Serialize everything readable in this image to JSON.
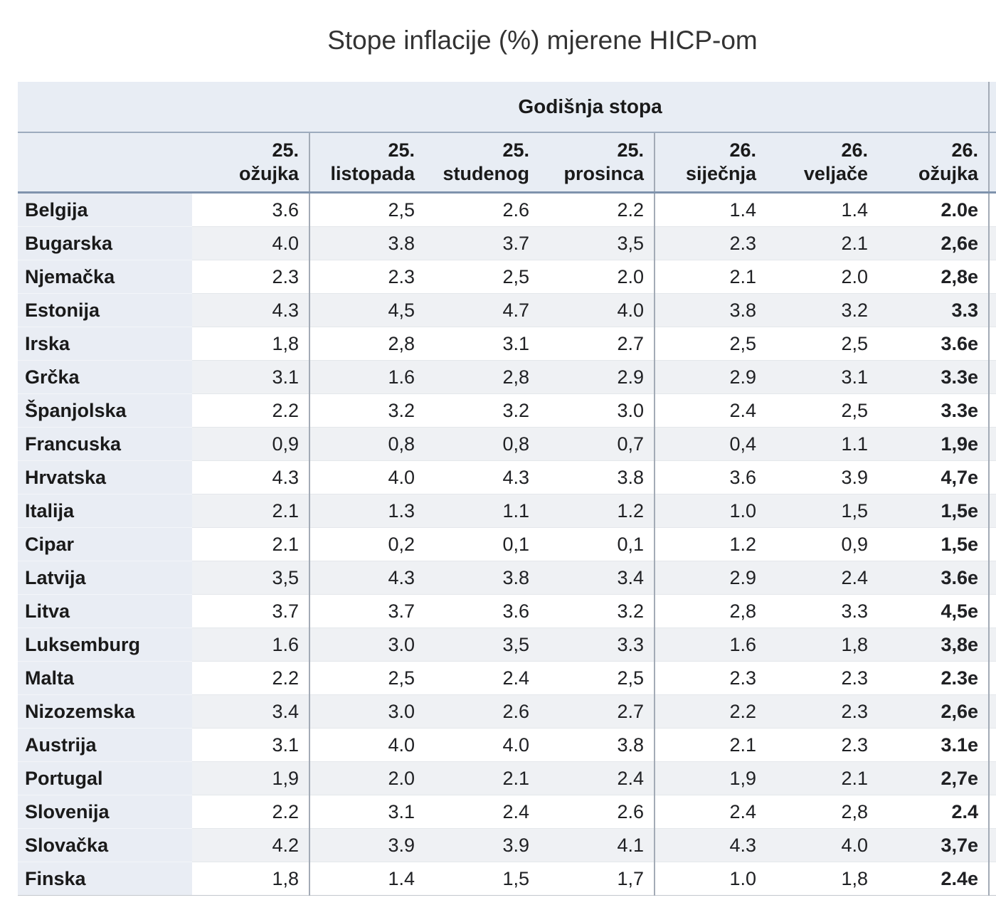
{
  "title": "Stope inflacije (%) mjerene HICP-om",
  "table": {
    "group_header": "Godišnja stopa",
    "columns": [
      {
        "line1": "25.",
        "line2": "ožujka"
      },
      {
        "line1": "25.",
        "line2": "listopada"
      },
      {
        "line1": "25.",
        "line2": "studenog"
      },
      {
        "line1": "25.",
        "line2": "prosinca"
      },
      {
        "line1": "26.",
        "line2": "siječnja"
      },
      {
        "line1": "26.",
        "line2": "veljače"
      },
      {
        "line1": "26.",
        "line2": "ožujka"
      }
    ],
    "rows": [
      {
        "country": "Belgija",
        "values": [
          "3.6",
          "2,5",
          "2.6",
          "2.2",
          "1.4",
          "1.4",
          "2.0e"
        ]
      },
      {
        "country": "Bugarska",
        "values": [
          "4.0",
          "3.8",
          "3.7",
          "3,5",
          "2.3",
          "2.1",
          "2,6e"
        ]
      },
      {
        "country": "Njemačka",
        "values": [
          "2.3",
          "2.3",
          "2,5",
          "2.0",
          "2.1",
          "2.0",
          "2,8e"
        ]
      },
      {
        "country": "Estonija",
        "values": [
          "4.3",
          "4,5",
          "4.7",
          "4.0",
          "3.8",
          "3.2",
          "3.3"
        ]
      },
      {
        "country": "Irska",
        "values": [
          "1,8",
          "2,8",
          "3.1",
          "2.7",
          "2,5",
          "2,5",
          "3.6e"
        ]
      },
      {
        "country": "Grčka",
        "values": [
          "3.1",
          "1.6",
          "2,8",
          "2.9",
          "2.9",
          "3.1",
          "3.3e"
        ]
      },
      {
        "country": "Španjolska",
        "values": [
          "2.2",
          "3.2",
          "3.2",
          "3.0",
          "2.4",
          "2,5",
          "3.3e"
        ]
      },
      {
        "country": "Francuska",
        "values": [
          "0,9",
          "0,8",
          "0,8",
          "0,7",
          "0,4",
          "1.1",
          "1,9e"
        ]
      },
      {
        "country": "Hrvatska",
        "values": [
          "4.3",
          "4.0",
          "4.3",
          "3.8",
          "3.6",
          "3.9",
          "4,7e"
        ]
      },
      {
        "country": "Italija",
        "values": [
          "2.1",
          "1.3",
          "1.1",
          "1.2",
          "1.0",
          "1,5",
          "1,5e"
        ]
      },
      {
        "country": "Cipar",
        "values": [
          "2.1",
          "0,2",
          "0,1",
          "0,1",
          "1.2",
          "0,9",
          "1,5e"
        ]
      },
      {
        "country": "Latvija",
        "values": [
          "3,5",
          "4.3",
          "3.8",
          "3.4",
          "2.9",
          "2.4",
          "3.6e"
        ]
      },
      {
        "country": "Litva",
        "values": [
          "3.7",
          "3.7",
          "3.6",
          "3.2",
          "2,8",
          "3.3",
          "4,5e"
        ]
      },
      {
        "country": "Luksemburg",
        "values": [
          "1.6",
          "3.0",
          "3,5",
          "3.3",
          "1.6",
          "1,8",
          "3,8e"
        ]
      },
      {
        "country": "Malta",
        "values": [
          "2.2",
          "2,5",
          "2.4",
          "2,5",
          "2.3",
          "2.3",
          "2.3e"
        ]
      },
      {
        "country": "Nizozemska",
        "values": [
          "3.4",
          "3.0",
          "2.6",
          "2.7",
          "2.2",
          "2.3",
          "2,6e"
        ]
      },
      {
        "country": "Austrija",
        "values": [
          "3.1",
          "4.0",
          "4.0",
          "3.8",
          "2.1",
          "2.3",
          "3.1e"
        ]
      },
      {
        "country": "Portugal",
        "values": [
          "1,9",
          "2.0",
          "2.1",
          "2.4",
          "1,9",
          "2.1",
          "2,7e"
        ]
      },
      {
        "country": "Slovenija",
        "values": [
          "2.2",
          "3.1",
          "2.4",
          "2.6",
          "2.4",
          "2,8",
          "2.4"
        ]
      },
      {
        "country": "Slovačka",
        "values": [
          "4.2",
          "3.9",
          "3.9",
          "4.1",
          "4.3",
          "4.0",
          "3,7e"
        ]
      },
      {
        "country": "Finska",
        "values": [
          "1,8",
          "1.4",
          "1,5",
          "1,7",
          "1.0",
          "1,8",
          "2.4e"
        ]
      }
    ]
  },
  "colors": {
    "header_bg": "#e8edf4",
    "name_cell_bg": "#e9edf4",
    "row_stripe": "#eff1f4",
    "heavy_border": "#7f93ad",
    "column_divider": "#a3abb6"
  }
}
